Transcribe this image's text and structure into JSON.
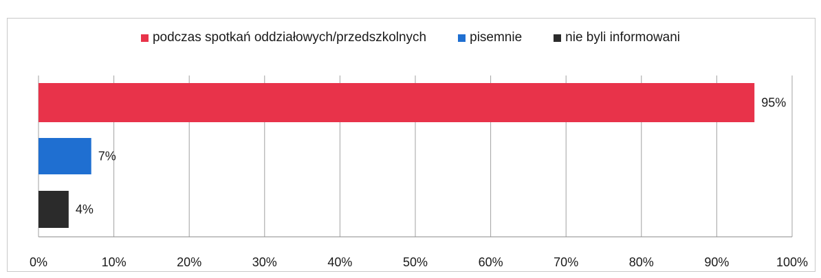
{
  "chart_data": {
    "type": "bar",
    "orientation": "horizontal",
    "series": [
      {
        "name": "podczas spotkań oddziałowych/przedszkolnych",
        "value": 95,
        "label": "95%",
        "color": "#e8334a"
      },
      {
        "name": "pisemnie",
        "value": 7,
        "label": "7%",
        "color": "#1f6fd1"
      },
      {
        "name": "nie byli informowani",
        "value": 4,
        "label": "4%",
        "color": "#2b2b2b"
      }
    ],
    "x_ticks": [
      "0%",
      "10%",
      "20%",
      "30%",
      "40%",
      "50%",
      "60%",
      "70%",
      "80%",
      "90%",
      "100%"
    ],
    "xlim": [
      0,
      100
    ],
    "grid": "vertical",
    "legend_position": "top"
  }
}
